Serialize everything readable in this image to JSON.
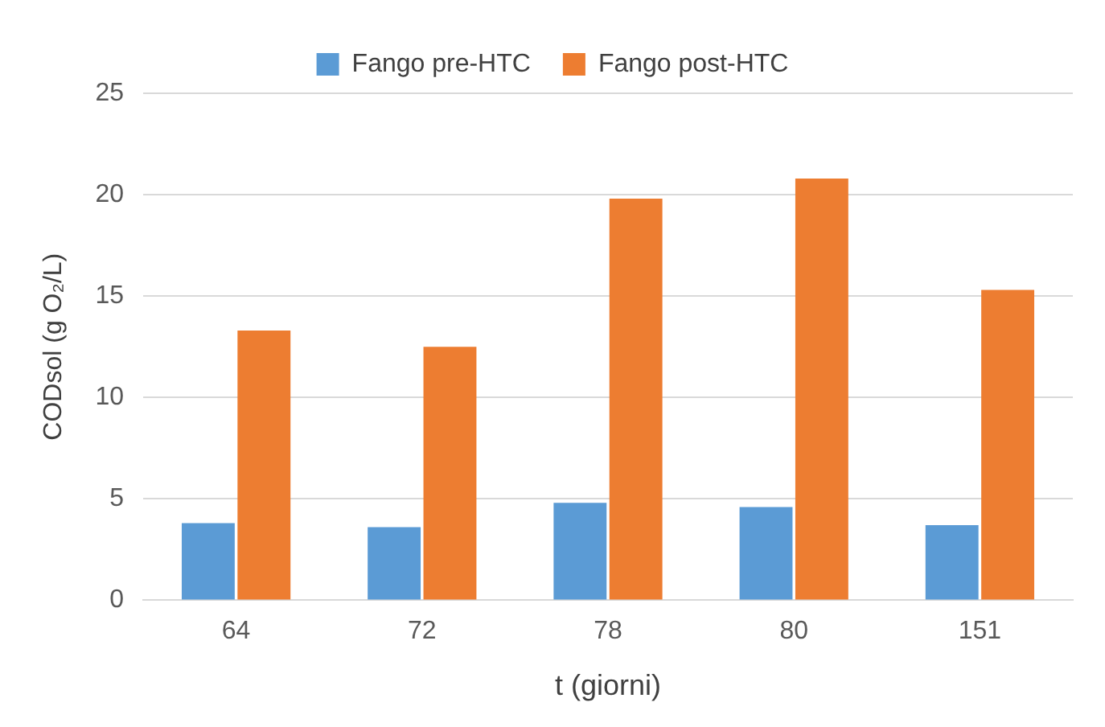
{
  "chart_data": {
    "type": "bar",
    "xlabel": "t (giorni)",
    "ylabel": "CODsol (g O₂/L)",
    "categories": [
      "64",
      "72",
      "78",
      "80",
      "151"
    ],
    "series": [
      {
        "name": "Fango pre-HTC",
        "color": "#5b9bd5",
        "values": [
          3.8,
          3.6,
          4.8,
          4.6,
          3.7
        ]
      },
      {
        "name": "Fango post-HTC",
        "color": "#ed7d31",
        "values": [
          13.3,
          12.5,
          19.8,
          20.8,
          15.3
        ]
      }
    ],
    "ylim": [
      0,
      25
    ],
    "yticks": [
      0,
      5,
      10,
      15,
      20,
      25
    ],
    "grid": "y",
    "legend": "top"
  }
}
